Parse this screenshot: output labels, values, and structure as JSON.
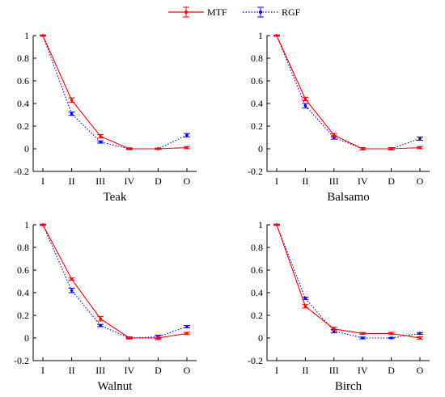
{
  "legend": {
    "items": [
      {
        "label": "MTF",
        "color": "#ff0000",
        "style": "solid"
      },
      {
        "label": "RGF",
        "color": "#0000ff",
        "style": "dotted"
      }
    ],
    "placement": "top-center"
  },
  "chart_data": [
    {
      "type": "line",
      "title": "Teak",
      "categories": [
        "I",
        "II",
        "III",
        "IV",
        "D",
        "O"
      ],
      "ylim": [
        -0.2,
        1
      ],
      "yticks": [
        "-0.2",
        "0",
        "0.2",
        "0.4",
        "0.6",
        "0.8",
        "1"
      ],
      "grid": false,
      "series": [
        {
          "name": "MTF",
          "color": "#ff0000",
          "values": [
            1.0,
            0.43,
            0.11,
            0.0,
            0.0,
            0.01
          ],
          "errors": [
            0.005,
            0.02,
            0.015,
            0.008,
            0.005,
            0.01
          ]
        },
        {
          "name": "RGF",
          "color": "#0000ff",
          "values": [
            1.0,
            0.31,
            0.06,
            0.0,
            0.0,
            0.12
          ],
          "errors": [
            0.005,
            0.015,
            0.01,
            0.005,
            0.005,
            0.015
          ]
        }
      ]
    },
    {
      "type": "line",
      "title": "Balsamo",
      "categories": [
        "I",
        "II",
        "III",
        "IV",
        "D",
        "O"
      ],
      "ylim": [
        -0.2,
        1
      ],
      "yticks": [
        "-0.2",
        "0",
        "0.2",
        "0.4",
        "0.6",
        "0.8",
        "1"
      ],
      "grid": false,
      "series": [
        {
          "name": "MTF",
          "color": "#ff0000",
          "values": [
            1.0,
            0.44,
            0.12,
            0.0,
            0.0,
            0.01
          ],
          "errors": [
            0.005,
            0.015,
            0.015,
            0.01,
            0.01,
            0.01
          ]
        },
        {
          "name": "RGF",
          "color": "#0000ff",
          "values": [
            1.0,
            0.38,
            0.1,
            0.0,
            0.0,
            0.09
          ],
          "errors": [
            0.005,
            0.02,
            0.015,
            0.01,
            0.01,
            0.015
          ]
        }
      ]
    },
    {
      "type": "line",
      "title": "Walnut",
      "categories": [
        "I",
        "II",
        "III",
        "IV",
        "D",
        "O"
      ],
      "ylim": [
        -0.2,
        1
      ],
      "yticks": [
        "-0.2",
        "0",
        "0.2",
        "0.4",
        "0.6",
        "0.8",
        "1"
      ],
      "grid": false,
      "series": [
        {
          "name": "MTF",
          "color": "#ff0000",
          "values": [
            1.0,
            0.52,
            0.17,
            0.0,
            0.0,
            0.04
          ],
          "errors": [
            0.005,
            0.01,
            0.02,
            0.01,
            0.015,
            0.01
          ]
        },
        {
          "name": "RGF",
          "color": "#0000ff",
          "values": [
            1.0,
            0.42,
            0.11,
            0.0,
            0.01,
            0.1
          ],
          "errors": [
            0.005,
            0.02,
            0.01,
            0.005,
            0.015,
            0.01
          ]
        }
      ]
    },
    {
      "type": "line",
      "title": "Birch",
      "categories": [
        "I",
        "II",
        "III",
        "IV",
        "D",
        "O"
      ],
      "ylim": [
        -0.2,
        1
      ],
      "yticks": [
        "-0.2",
        "0",
        "0.2",
        "0.4",
        "0.6",
        "0.8",
        "1"
      ],
      "grid": false,
      "series": [
        {
          "name": "MTF",
          "color": "#ff0000",
          "values": [
            1.0,
            0.28,
            0.08,
            0.04,
            0.04,
            0.0
          ],
          "errors": [
            0.005,
            0.015,
            0.015,
            0.008,
            0.01,
            0.012
          ]
        },
        {
          "name": "RGF",
          "color": "#0000ff",
          "values": [
            1.0,
            0.35,
            0.06,
            0.0,
            0.0,
            0.04
          ],
          "errors": [
            0.005,
            0.01,
            0.015,
            0.008,
            0.005,
            0.008
          ]
        }
      ]
    }
  ]
}
